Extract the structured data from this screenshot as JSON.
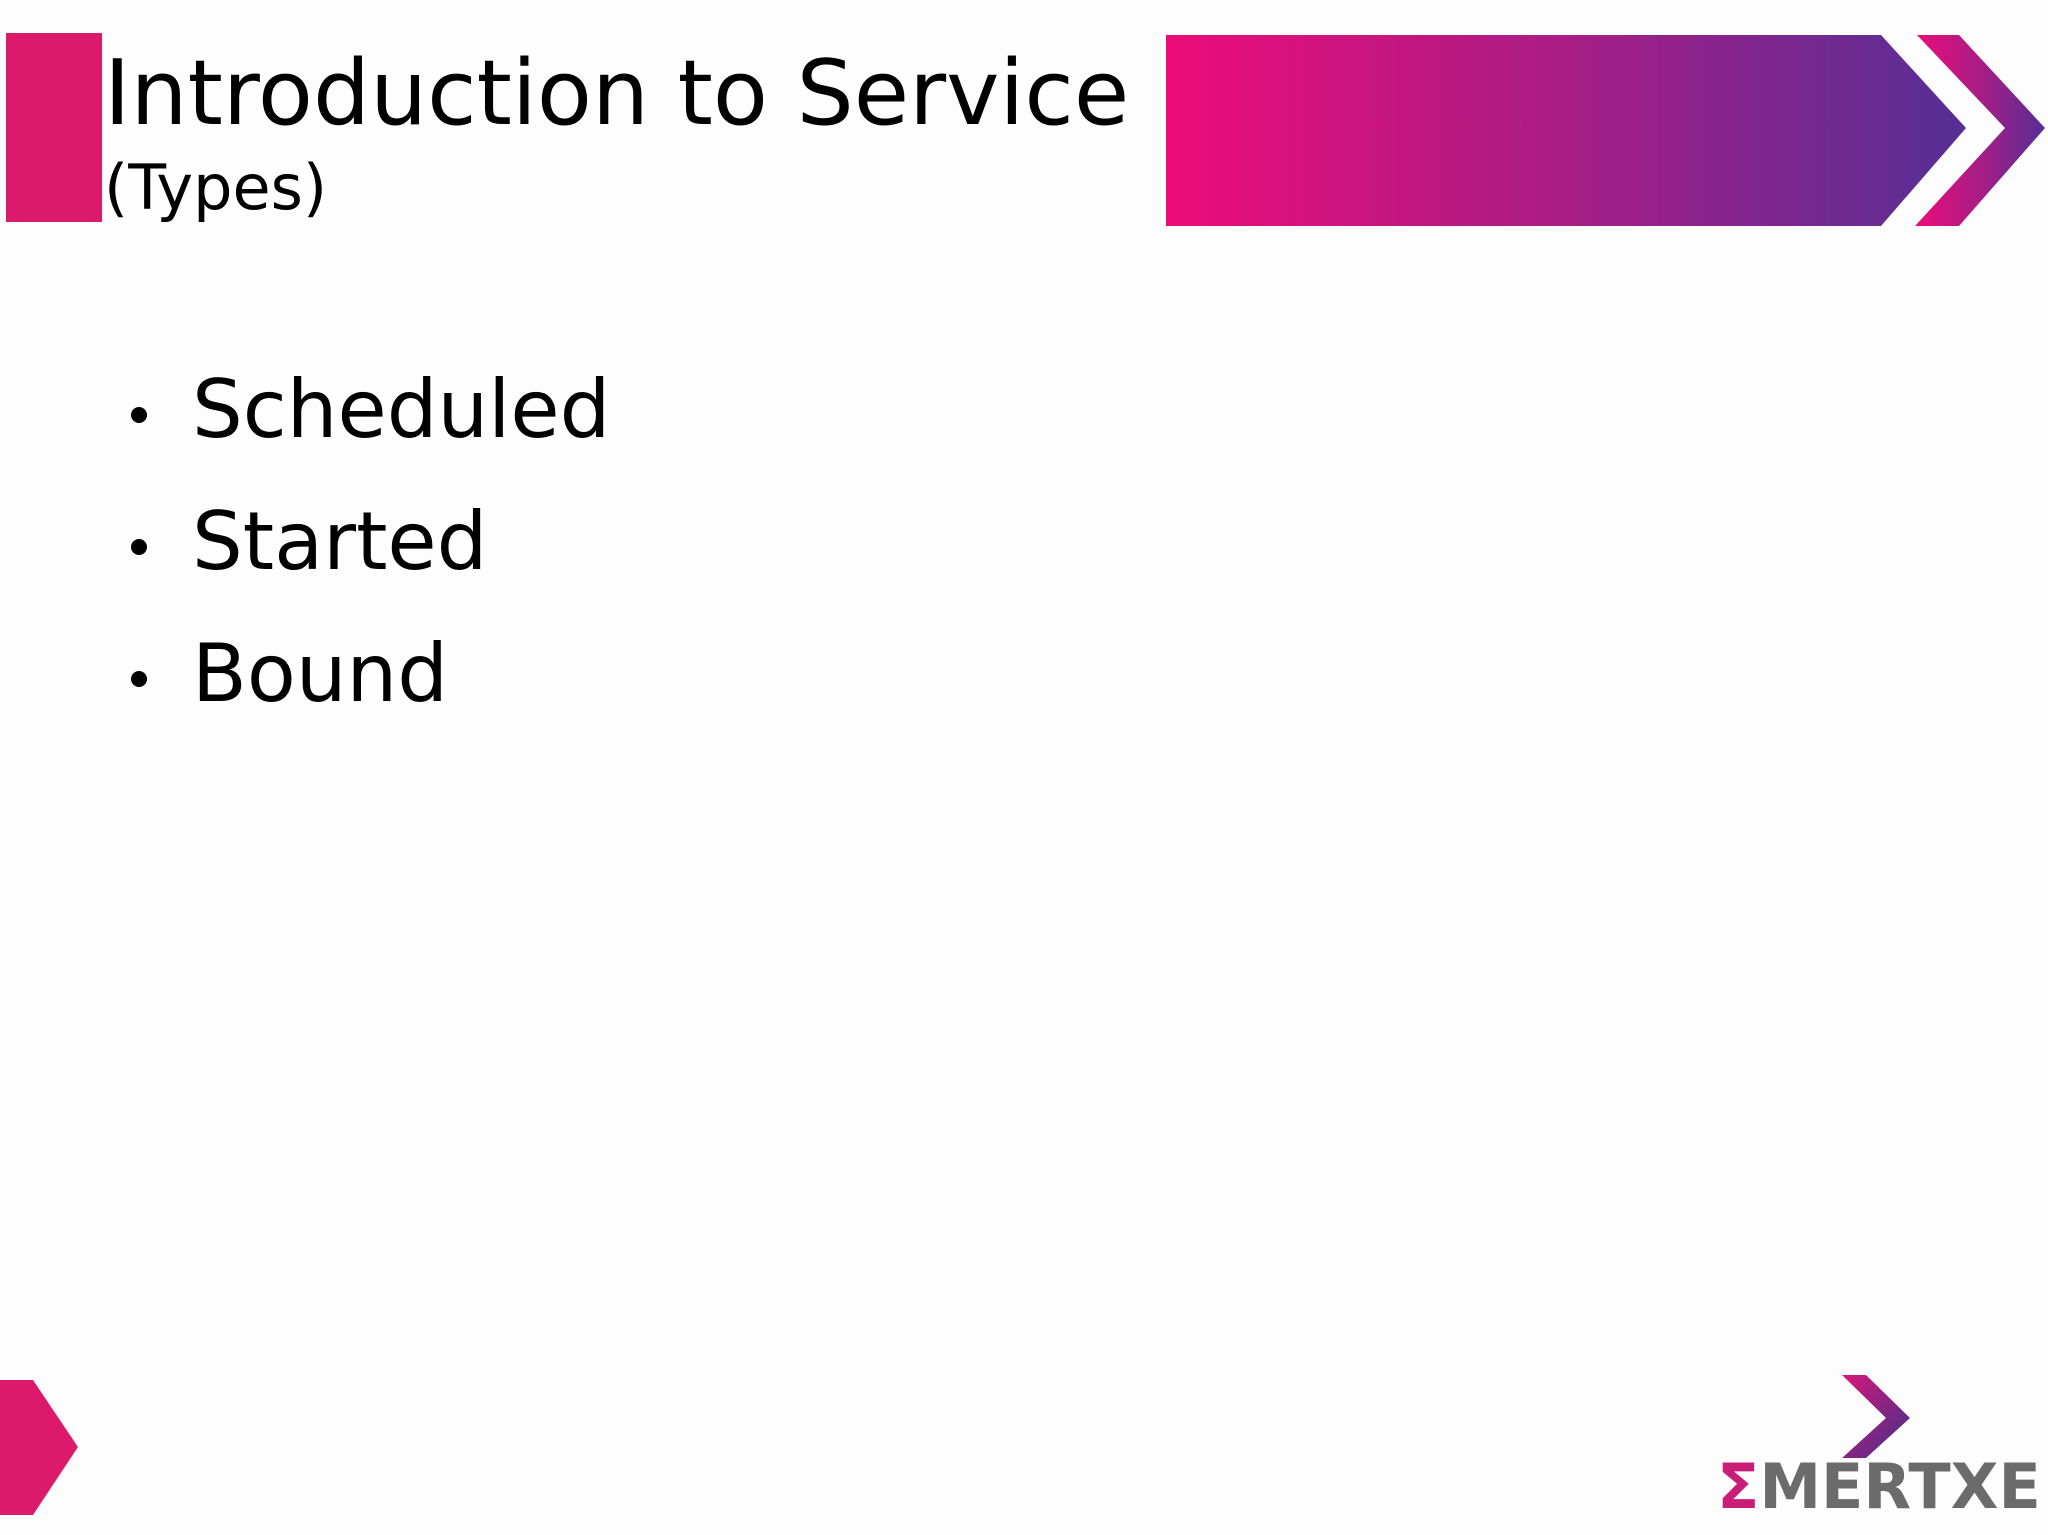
{
  "header": {
    "title": "Introduction to Service",
    "subtitle": "(Types)"
  },
  "bullets": [
    "Scheduled",
    "Started",
    "Bound"
  ],
  "logo": {
    "mark": "Σ",
    "name": "MERTXE"
  }
}
